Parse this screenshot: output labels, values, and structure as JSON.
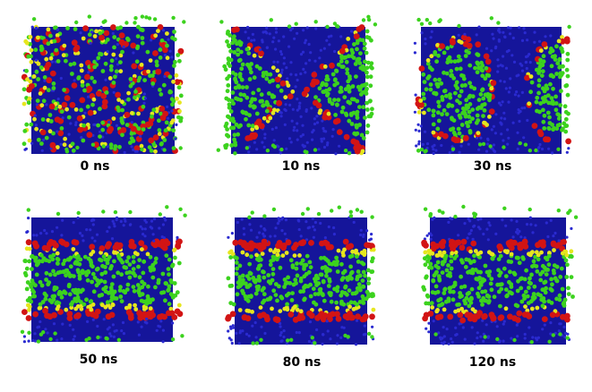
{
  "panels": [
    {
      "label": "0 ns"
    },
    {
      "label": "10 ns"
    },
    {
      "label": "30 ns"
    },
    {
      "label": "50 ns"
    },
    {
      "label": "80 ns"
    },
    {
      "label": "120 ns"
    }
  ]
}
